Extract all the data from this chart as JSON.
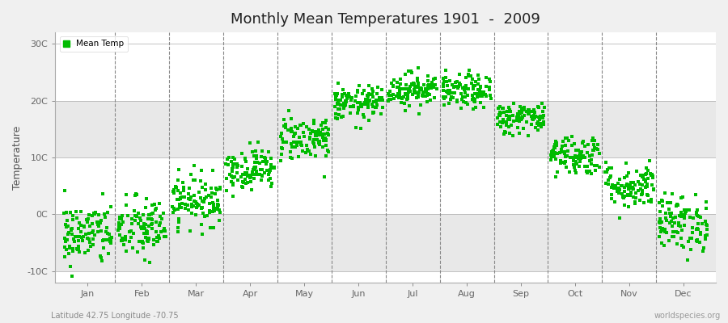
{
  "title": "Monthly Mean Temperatures 1901  -  2009",
  "ylabel": "Temperature",
  "subtitle": "Latitude 42.75 Longitude -70.75",
  "watermark": "worldspecies.org",
  "legend_label": "Mean Temp",
  "dot_color": "#00BB00",
  "fig_bg_color": "#F0F0F0",
  "plot_bg_color": "#FFFFFF",
  "band_color_dark": "#E8E8E8",
  "band_color_light": "#FFFFFF",
  "ylim": [
    -12,
    32
  ],
  "yticks": [
    -10,
    0,
    10,
    20,
    30
  ],
  "ytick_labels": [
    "-10C",
    "0C",
    "10C",
    "20C",
    "30C"
  ],
  "months": [
    "Jan",
    "Feb",
    "Mar",
    "Apr",
    "May",
    "Jun",
    "Jul",
    "Aug",
    "Sep",
    "Oct",
    "Nov",
    "Dec"
  ],
  "monthly_means": [
    -3.5,
    -2.5,
    2.5,
    8.0,
    13.5,
    19.5,
    22.0,
    21.5,
    17.0,
    10.5,
    5.0,
    -1.5
  ],
  "monthly_stds": [
    2.8,
    2.8,
    2.2,
    1.8,
    2.0,
    1.5,
    1.5,
    1.5,
    1.4,
    1.8,
    2.0,
    2.5
  ],
  "n_years": 109,
  "seed": 42,
  "marker_size": 5
}
